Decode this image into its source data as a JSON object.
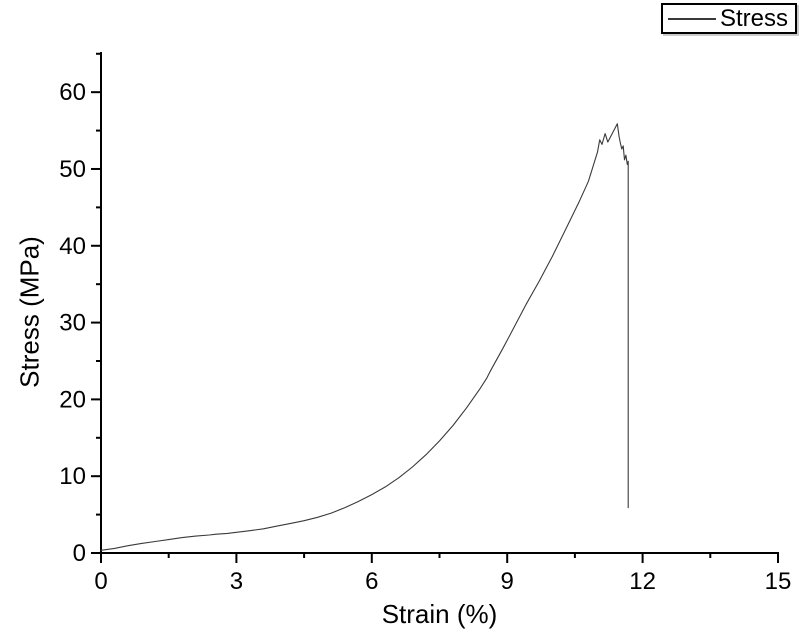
{
  "chart_data": {
    "type": "line",
    "title": "",
    "xlabel": "Strain (%)",
    "ylabel": "Stress (MPa)",
    "legend_label": "Stress",
    "legend_position": "top-right-outside-plot",
    "grid": false,
    "xlim": [
      0,
      15
    ],
    "ylim": [
      0,
      65.1
    ],
    "x_ticks": [
      0,
      3,
      6,
      9,
      12,
      15
    ],
    "x_minor_ticks": [
      1.5,
      4.5,
      7.5,
      10.5,
      13.5
    ],
    "y_ticks": [
      0,
      10,
      20,
      30,
      40,
      50,
      60
    ],
    "y_minor_ticks": [
      5,
      15,
      25,
      35,
      45,
      55,
      65
    ],
    "colors": {
      "background": "#ffffff",
      "axis": "#000000",
      "curve": "#3a3a3a",
      "tick_label": "#000000"
    },
    "series": [
      {
        "name": "Stress",
        "points": [
          [
            0,
            0.35
          ],
          [
            0.3,
            0.6
          ],
          [
            0.6,
            0.95
          ],
          [
            0.9,
            1.25
          ],
          [
            1.2,
            1.5
          ],
          [
            1.5,
            1.75
          ],
          [
            1.8,
            2.0
          ],
          [
            2.1,
            2.2
          ],
          [
            2.4,
            2.35
          ],
          [
            2.55,
            2.45
          ],
          [
            2.8,
            2.55
          ],
          [
            3.0,
            2.7
          ],
          [
            3.3,
            2.9
          ],
          [
            3.6,
            3.15
          ],
          [
            3.9,
            3.5
          ],
          [
            4.2,
            3.85
          ],
          [
            4.5,
            4.2
          ],
          [
            4.8,
            4.65
          ],
          [
            5.1,
            5.2
          ],
          [
            5.4,
            5.9
          ],
          [
            5.7,
            6.7
          ],
          [
            6.0,
            7.6
          ],
          [
            6.3,
            8.6
          ],
          [
            6.6,
            9.8
          ],
          [
            6.9,
            11.2
          ],
          [
            7.2,
            12.8
          ],
          [
            7.5,
            14.6
          ],
          [
            7.8,
            16.6
          ],
          [
            8.1,
            18.9
          ],
          [
            8.4,
            21.4
          ],
          [
            8.55,
            22.8
          ],
          [
            8.62,
            23.6
          ],
          [
            8.9,
            26.6
          ],
          [
            9.1,
            28.8
          ],
          [
            9.35,
            31.6
          ],
          [
            9.42,
            32.4
          ],
          [
            9.7,
            35.3
          ],
          [
            10.0,
            38.6
          ],
          [
            10.3,
            42.2
          ],
          [
            10.6,
            45.8
          ],
          [
            10.8,
            48.4
          ],
          [
            11.0,
            52.2
          ],
          [
            11.05,
            53.8
          ],
          [
            11.1,
            53.2
          ],
          [
            11.17,
            54.6
          ],
          [
            11.23,
            53.5
          ],
          [
            11.3,
            54.3
          ],
          [
            11.38,
            55.2
          ],
          [
            11.44,
            55.9
          ],
          [
            11.48,
            54.2
          ],
          [
            11.51,
            53.3
          ],
          [
            11.54,
            52.6
          ],
          [
            11.57,
            53.0
          ],
          [
            11.6,
            51.2
          ],
          [
            11.63,
            51.8
          ],
          [
            11.66,
            50.6
          ],
          [
            11.68,
            51.0
          ],
          [
            11.68,
            5.9
          ]
        ]
      }
    ]
  }
}
